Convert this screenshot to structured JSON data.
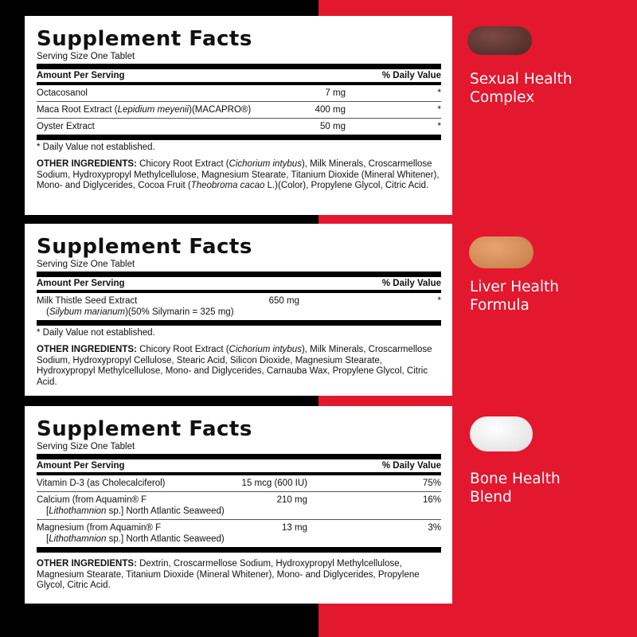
{
  "panels": [
    {
      "title": "Supplement Facts",
      "serving": "Serving Size One Tablet",
      "hdr_amount": "Amount Per Serving",
      "hdr_dv": "% Daily Value",
      "rows": [
        {
          "name": "Octacosanol",
          "amount": "7 mg",
          "dv": "*"
        },
        {
          "name_pre": "Maca Root Extract (",
          "name_it": "Lepidium meyenii",
          "name_post": ")(MACAPRO®)",
          "amount": "400 mg",
          "dv": "*"
        },
        {
          "name": "Oyster Extract",
          "amount": "50 mg",
          "dv": "*"
        }
      ],
      "footnote": "* Daily Value not established.",
      "oi_label": "OTHER INGREDIENTS:",
      "oi_1": " Chicory Root Extract (",
      "oi_it1": "Cichorium intybus",
      "oi_2": "), Milk Minerals, Croscarmellose Sodium, Hydroxypropyl Methylcellulose, Magnesium Stearate, Titanium Dioxide (Mineral Whitener), Mono- and Diglycerides, Cocoa Fruit (",
      "oi_it2": "Theobroma cacao",
      "oi_3": " L.)(Color), Propylene Glycol, Citric Acid.",
      "product": [
        "Sexual Health",
        "Complex"
      ],
      "pill_color": "#5a3530"
    },
    {
      "title": "Supplement Facts",
      "serving": "Serving Size One Tablet",
      "hdr_amount": "Amount Per Serving",
      "hdr_dv": "% Daily Value",
      "rows": [
        {
          "name": "Milk Thistle Seed Extract",
          "sub_pre": "(",
          "sub_it": "Silybum marianum",
          "sub_post": ")(50% Silymarin = 325 mg)",
          "amount": "650 mg",
          "dv": "*"
        }
      ],
      "footnote": "* Daily Value not established.",
      "oi_label": "OTHER INGREDIENTS:",
      "oi_1": " Chicory Root Extract (",
      "oi_it1": "Cichorium intybus",
      "oi_2": "), Milk Minerals, Croscarmellose Sodium, Hydroxypropyl Cellulose, Stearic Acid, Silicon Dioxide, Magnesium Stearate, Hydroxypropyl Methylcellulose, Mono- and Diglycerides, Carnauba Wax, Propylene Glycol, Citric Acid.",
      "product": [
        "Liver Health",
        "Formula"
      ],
      "pill_color": "#d9925a"
    },
    {
      "title": "Supplement Facts",
      "serving": "Serving Size One Tablet",
      "hdr_amount": "Amount Per Serving",
      "hdr_dv": "% Daily Value",
      "rows": [
        {
          "name": "Vitamin D-3 (as Cholecalciferol)",
          "amount": "15 mcg (600 IU)",
          "dv": "75%"
        },
        {
          "name": "Calcium (from Aquamin® F",
          "sub_pre": "[",
          "sub_it": "Lithothamnion",
          "sub_post": " sp.] North Atlantic Seaweed)",
          "amount": "210 mg",
          "dv": "16%"
        },
        {
          "name": "Magnesium (from Aquamin® F",
          "sub_pre": "[",
          "sub_it": "Lithothamnion",
          "sub_post": " sp.] North Atlantic Seaweed)",
          "amount": "13 mg",
          "dv": "3%"
        }
      ],
      "oi_label": "OTHER INGREDIENTS:",
      "oi_1": " Dextrin, Croscarmellose Sodium, Hydroxypropyl Methylcellulose, Magnesium Stearate, Titanium Dioxide (Mineral Whitener), Mono- and Diglycerides, Propylene Glycol, Citric Acid.",
      "product": [
        "Bone Health",
        "Blend"
      ],
      "pill_color": "#f4f4f4"
    }
  ]
}
